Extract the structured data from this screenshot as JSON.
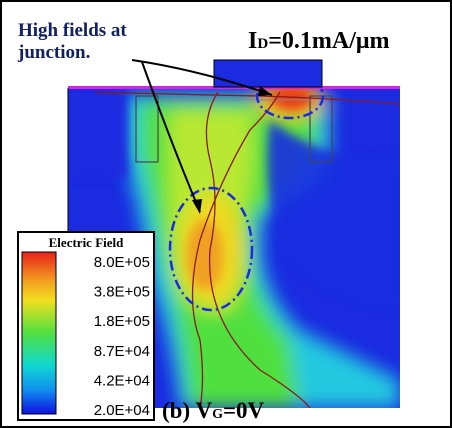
{
  "annotation": {
    "text_line1": "High fields at",
    "text_line2": "junction."
  },
  "current": {
    "symbol": "I",
    "subscript": "D",
    "rest": "=0.1mA/μm"
  },
  "colorbar": {
    "title": "Electric Field",
    "labels": [
      "8.0E+05",
      "3.8E+05",
      "1.8E+05",
      "8.7E+04",
      "4.2E+04",
      "2.0E+04"
    ]
  },
  "caption": {
    "prefix": "(b) V",
    "subscript": "G",
    "rest": "=0V"
  }
}
